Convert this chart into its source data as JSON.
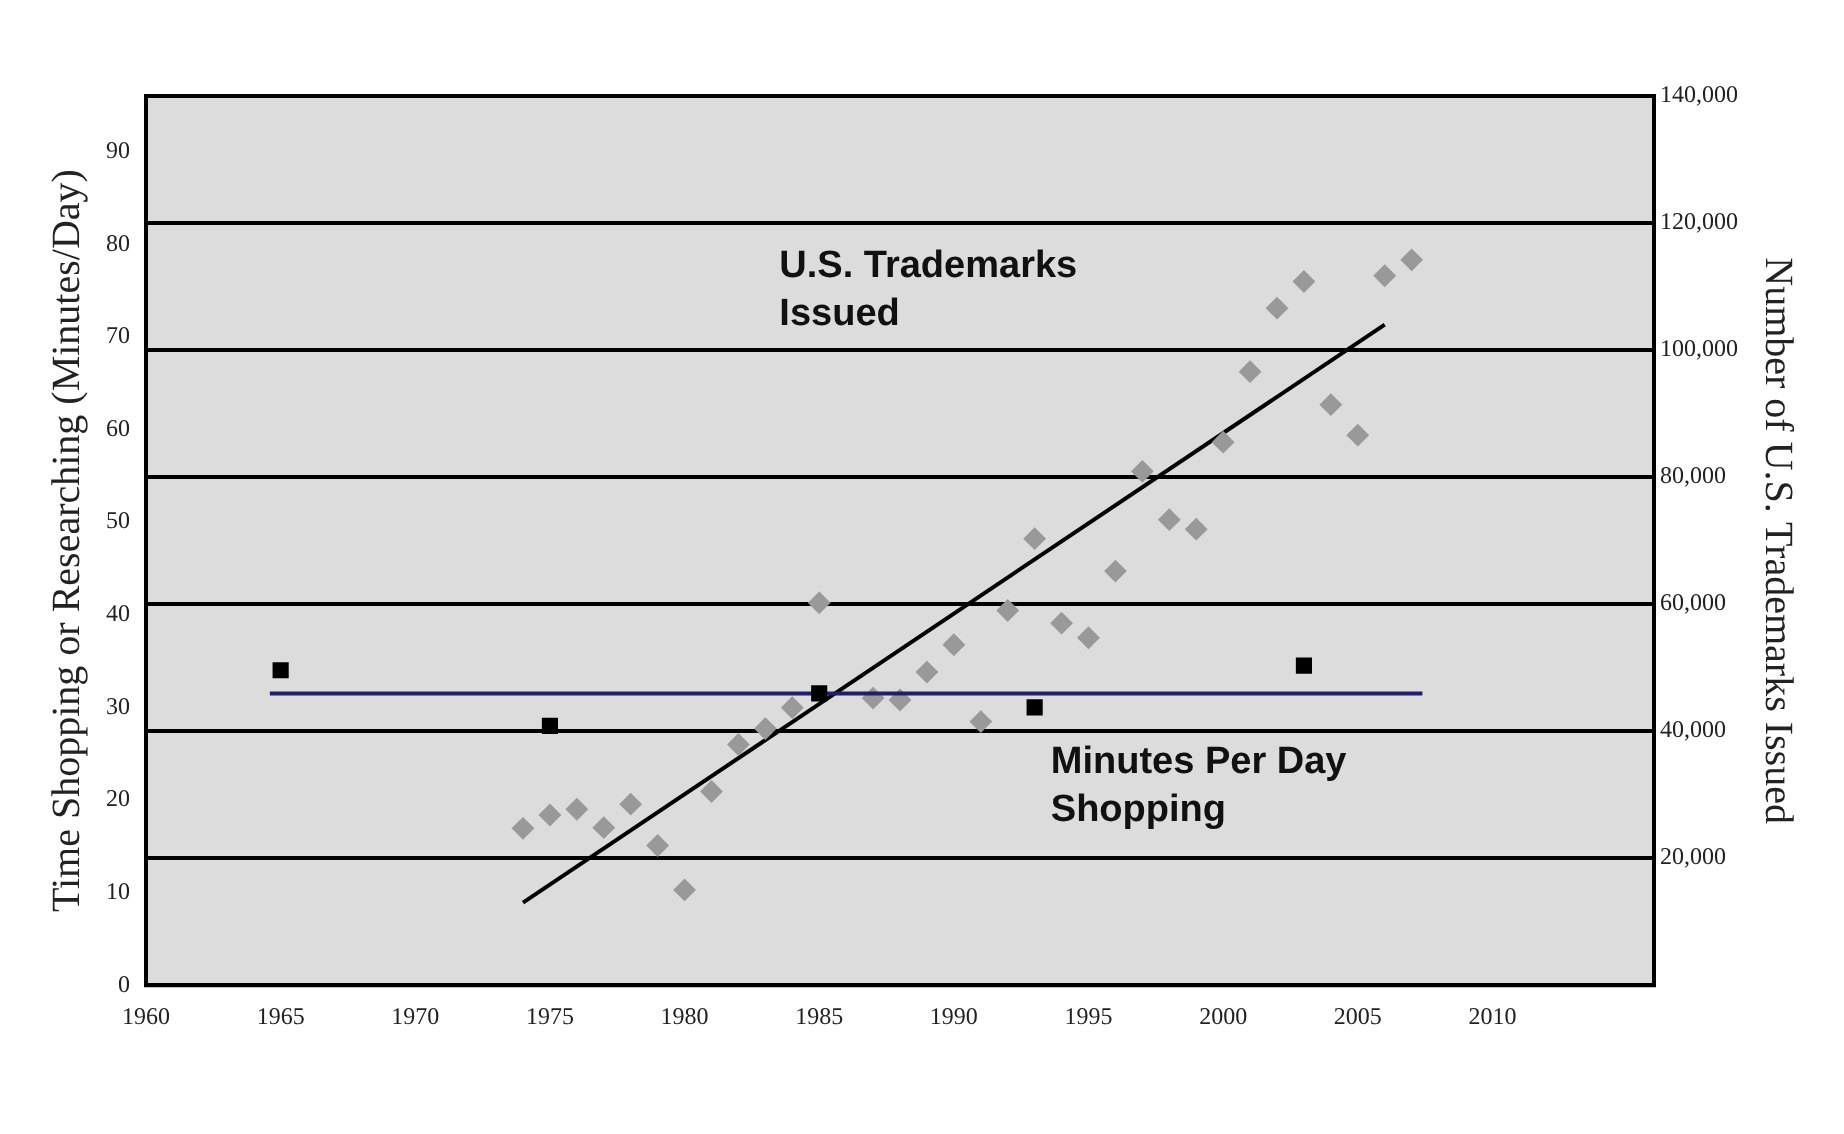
{
  "chart_data": {
    "type": "scatter",
    "ylabel": "Time Shopping or Researching (Minutes/Day)",
    "y2label": "Number of U.S. Trademarks Issued",
    "xlim": [
      1960,
      2016
    ],
    "xticks": [
      1960,
      1965,
      1970,
      1975,
      1980,
      1985,
      1990,
      1995,
      2000,
      2005,
      2010
    ],
    "ylim": [
      0,
      96
    ],
    "yticks": [
      0,
      10,
      20,
      30,
      40,
      50,
      60,
      70,
      80,
      90
    ],
    "y2lim": [
      0,
      140000
    ],
    "y2ticks": [
      {
        "value": 20000,
        "label": "20,000"
      },
      {
        "value": 40000,
        "label": "40,000"
      },
      {
        "value": 60000,
        "label": "60,000"
      },
      {
        "value": 80000,
        "label": "80,000"
      },
      {
        "value": 100000,
        "label": "100,000"
      },
      {
        "value": 120000,
        "label": "120,000"
      },
      {
        "value": 140000,
        "label": "140,000"
      }
    ],
    "grid": "y",
    "legend": false,
    "annotations": [
      "U.S. Trademarks Issued",
      "Minutes Per Day Shopping"
    ],
    "series": [
      {
        "type": "scatter",
        "marker": "square",
        "color": "#000000",
        "axis": "y",
        "x": [
          1965,
          1975,
          1985,
          1993,
          2003
        ],
        "values": [
          34,
          28,
          31.5,
          30,
          34.5
        ]
      },
      {
        "type": "line",
        "marker": "none",
        "color": "#1f1f6e",
        "axis": "y",
        "x": [
          1964.6,
          2007.4
        ],
        "values": [
          31.5,
          31.5
        ]
      },
      {
        "type": "scatter",
        "marker": "diamond",
        "color": "#999999",
        "axis": "y2",
        "x": [
          1974,
          1975,
          1976,
          1977,
          1978,
          1979,
          1980,
          1981,
          1982,
          1983,
          1984,
          1985,
          1987,
          1988,
          1989,
          1990,
          1991,
          1992,
          1993,
          1994,
          1995,
          1996,
          1997,
          1998,
          1999,
          2000,
          2001,
          2002,
          2003,
          2004,
          2005,
          2006,
          2007
        ],
        "values": [
          24700,
          26800,
          27700,
          24800,
          28500,
          22000,
          15000,
          30500,
          37900,
          40400,
          43700,
          60200,
          45200,
          44900,
          49300,
          53600,
          41500,
          59000,
          70300,
          57000,
          54700,
          65200,
          80900,
          73300,
          71800,
          85500,
          96600,
          106600,
          110800,
          91400,
          86600,
          111700,
          114200
        ]
      },
      {
        "type": "line",
        "marker": "none",
        "color": "#000000",
        "axis": "y2",
        "x": [
          1974,
          2006
        ],
        "values": [
          13000,
          104000
        ]
      }
    ]
  }
}
